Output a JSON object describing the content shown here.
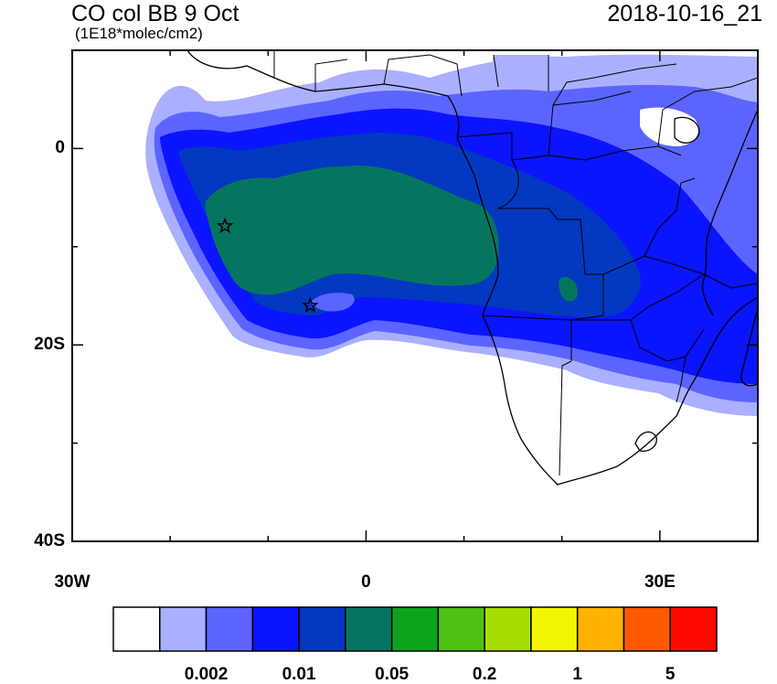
{
  "header": {
    "title": "CO col BB 9 Oct",
    "units": "(1E18*molec/cm2)",
    "timestamp": "2018-10-16_21"
  },
  "map": {
    "lon_range": [
      -30,
      40
    ],
    "lat_range": [
      -40,
      10
    ],
    "x_ticks": [
      {
        "lon": -30,
        "label": "30W"
      },
      {
        "lon": 0,
        "label": "0"
      },
      {
        "lon": 30,
        "label": "30E"
      }
    ],
    "y_ticks": [
      {
        "lat": 0,
        "label": "0"
      },
      {
        "lat": -20,
        "label": "20S"
      },
      {
        "lat": -40,
        "label": "40S"
      }
    ],
    "minor_x_ticks": [
      -20,
      -10,
      10,
      20,
      40
    ],
    "minor_y_ticks": [
      -10,
      -30
    ],
    "stars": [
      {
        "name": "star-marker-ascension",
        "lon": -14.4,
        "lat": -7.9
      },
      {
        "name": "star-marker-st-helena",
        "lon": -5.7,
        "lat": -16.0
      }
    ],
    "colors": {
      "ocean_background": "#ffffff",
      "coastline": "#000000"
    }
  },
  "colorbar": {
    "colors": [
      "#ffffff",
      "#aab0ff",
      "#5b64ff",
      "#0a14ff",
      "#0338c0",
      "#067560",
      "#0aa51c",
      "#4ec114",
      "#a6dc00",
      "#f2f600",
      "#ffb300",
      "#ff5a00",
      "#ff0a00"
    ],
    "labels": [
      {
        "after_box": 2,
        "text": "0.002"
      },
      {
        "after_box": 4,
        "text": "0.01"
      },
      {
        "after_box": 6,
        "text": "0.05"
      },
      {
        "after_box": 8,
        "text": "0.2"
      },
      {
        "after_box": 10,
        "text": "1"
      },
      {
        "after_box": 12,
        "text": "5"
      }
    ]
  }
}
